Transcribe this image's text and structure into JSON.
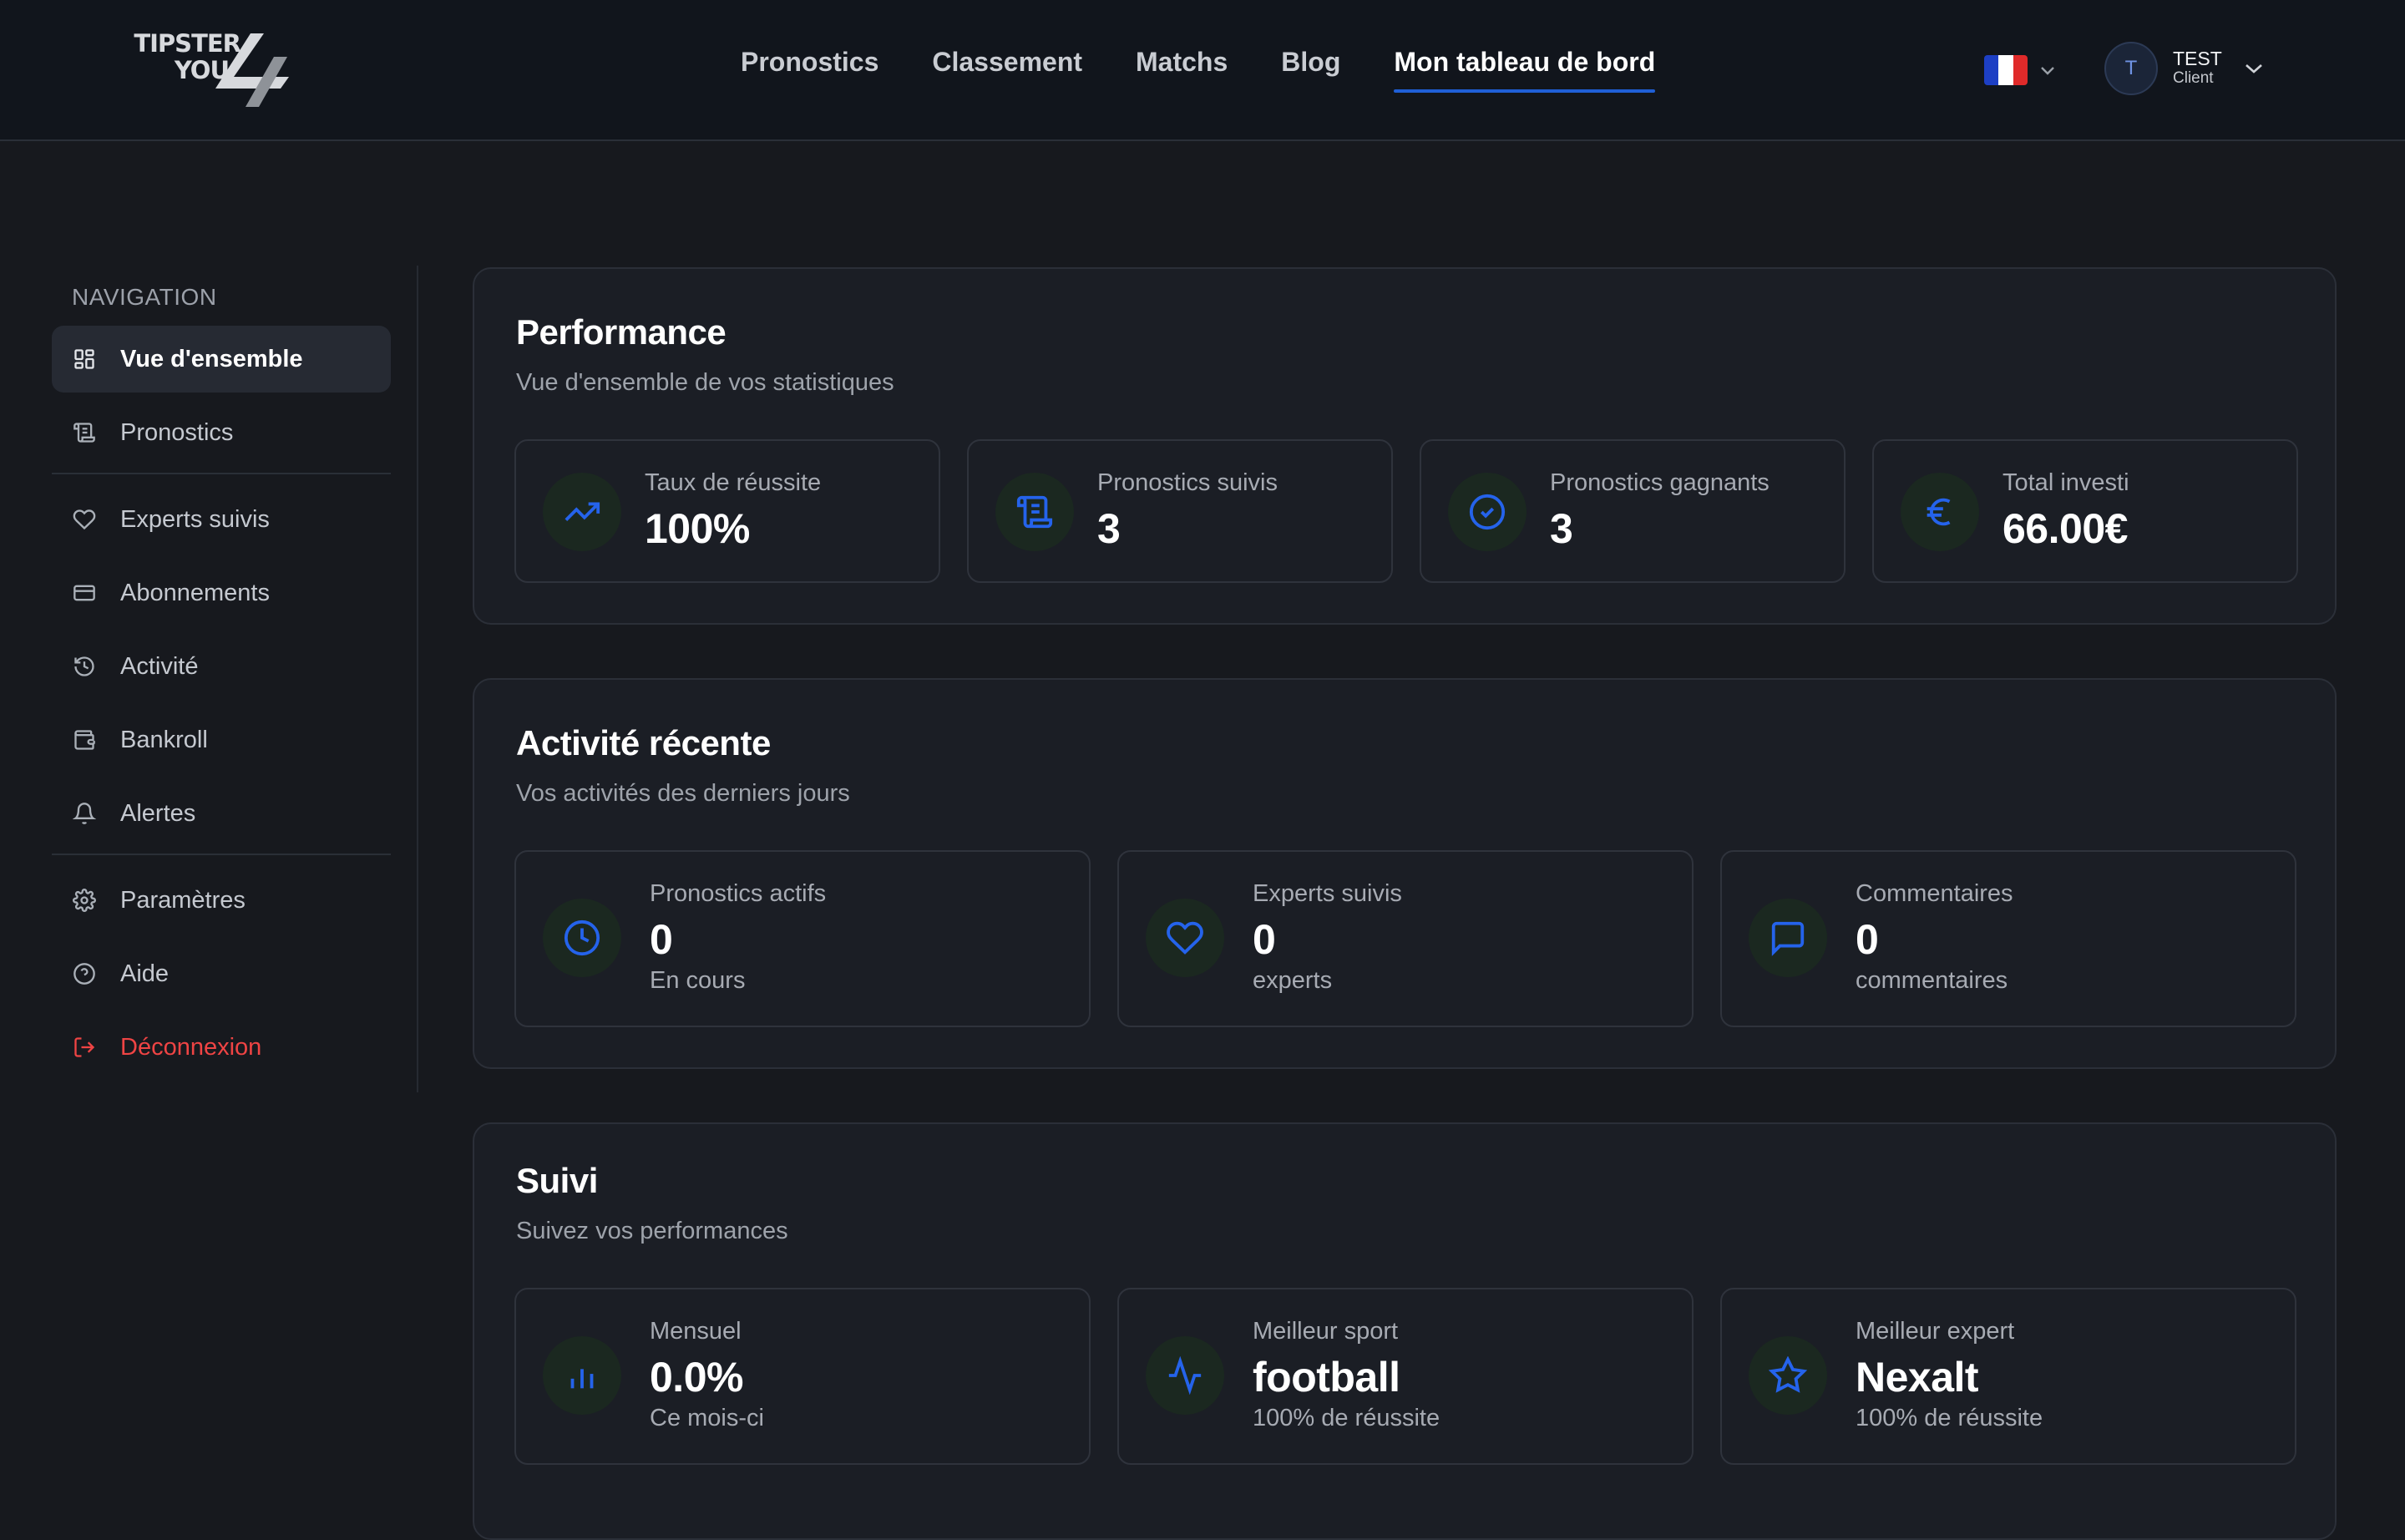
{
  "brand": {
    "logo_line1": "TIPSTER",
    "logo_line2": "YOU"
  },
  "nav": {
    "items": [
      {
        "label": "Pronostics",
        "active": false
      },
      {
        "label": "Classement",
        "active": false
      },
      {
        "label": "Matchs",
        "active": false
      },
      {
        "label": "Blog",
        "active": false
      },
      {
        "label": "Mon tableau de bord",
        "active": true
      }
    ]
  },
  "language": {
    "flag": "fr",
    "flag_colors": [
      "#1d3fc4",
      "#ffffff",
      "#e02a2a"
    ]
  },
  "user": {
    "initial": "T",
    "name": "TEST",
    "role": "Client"
  },
  "sidebar": {
    "title": "NAVIGATION",
    "items": [
      {
        "label": "Vue d'ensemble",
        "icon": "grid-icon",
        "active": true
      },
      {
        "label": "Pronostics",
        "icon": "scroll-icon"
      },
      {
        "label": "Experts suivis",
        "icon": "heart-icon"
      },
      {
        "label": "Abonnements",
        "icon": "credit-card-icon"
      },
      {
        "label": "Activité",
        "icon": "history-icon"
      },
      {
        "label": "Bankroll",
        "icon": "wallet-icon"
      },
      {
        "label": "Alertes",
        "icon": "bell-icon"
      },
      {
        "label": "Paramètres",
        "icon": "gear-icon"
      },
      {
        "label": "Aide",
        "icon": "help-circle-icon"
      },
      {
        "label": "Déconnexion",
        "icon": "logout-icon"
      }
    ]
  },
  "performance": {
    "title": "Performance",
    "subtitle": "Vue d'ensemble de vos statistiques",
    "stats": [
      {
        "label": "Taux de réussite",
        "value": "100%",
        "icon": "trending-up-icon"
      },
      {
        "label": "Pronostics suivis",
        "value": "3",
        "icon": "scroll-icon"
      },
      {
        "label": "Pronostics gagnants",
        "value": "3",
        "icon": "check-circle-icon"
      },
      {
        "label": "Total investi",
        "value": "66.00€",
        "icon": "euro-icon"
      }
    ]
  },
  "activity": {
    "title": "Activité récente",
    "subtitle": "Vos activités des derniers jours",
    "stats": [
      {
        "label": "Pronostics actifs",
        "value": "0",
        "note": "En cours",
        "icon": "clock-icon"
      },
      {
        "label": "Experts suivis",
        "value": "0",
        "note": "experts",
        "icon": "heart-icon"
      },
      {
        "label": "Commentaires",
        "value": "0",
        "note": "commentaires",
        "icon": "message-icon"
      }
    ]
  },
  "tracking": {
    "title": "Suivi",
    "subtitle": "Suivez vos performances",
    "stats": [
      {
        "label": "Mensuel",
        "value": "0.0%",
        "note": "Ce mois-ci",
        "icon": "bar-chart-icon"
      },
      {
        "label": "Meilleur sport",
        "value": "football",
        "note": "100% de réussite",
        "icon": "activity-icon"
      },
      {
        "label": "Meilleur expert",
        "value": "Nexalt",
        "note": "100% de réussite",
        "icon": "star-icon"
      }
    ]
  },
  "colors": {
    "accent": "#1f5fd6",
    "icon_blue": "#2563eb",
    "danger": "#ef4444",
    "background": "#17191e",
    "header": "#11151c"
  }
}
